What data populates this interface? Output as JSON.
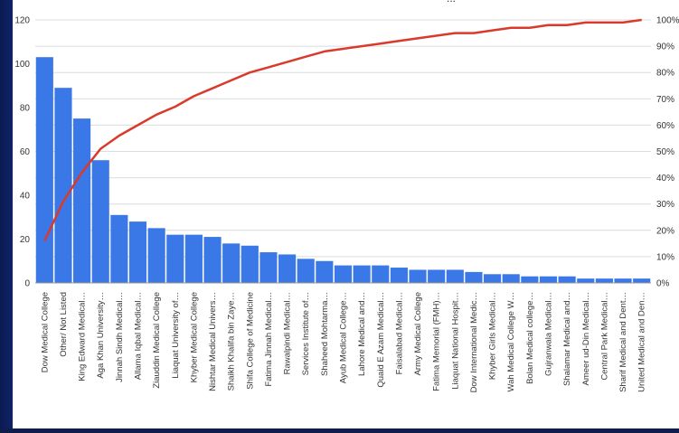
{
  "stub_text": "...",
  "chart_data": {
    "type": "bar",
    "title": "",
    "xlabel": "",
    "ylabel": "",
    "ylim": [
      0,
      120
    ],
    "y_ticks": [
      "0",
      "20",
      "40",
      "60",
      "80",
      "100",
      "120"
    ],
    "y2lim": [
      0,
      100
    ],
    "y2_ticks": [
      "0%",
      "10%",
      "20%",
      "30%",
      "40%",
      "50%",
      "60%",
      "70%",
      "80%",
      "90%",
      "100%"
    ],
    "grid": true,
    "legend": "none",
    "colors": {
      "bars": "#3b78e7",
      "line": "#d93a2b"
    },
    "categories": [
      "Dow Medical College",
      "Other/ Not Listed",
      "King Edward Medical…",
      "Aga Khan University…",
      "Jinnah Sindh Medical…",
      "Allama Iqbal Medical…",
      "Ziauddin Medical College",
      "Liaquat University of…",
      "Khyber Medical College",
      "Nishtar Medical Univers…",
      "Shaikh Khalifa bin Zaye…",
      "Shifa College of Medicine",
      "Fatima Jinnah Medical…",
      "Rawalpindi Medical…",
      "Services Institute of…",
      "Shaheed Mohtarma…",
      "Ayub Medical College…",
      "Lahore Medical and…",
      "Quaid E Azam Medical…",
      "Faisalabad Medical…",
      "Army Medical College",
      "Fatima Memorial (FMH)…",
      "Liaquat National Hospit…",
      "Dow International Medic…",
      "Khyber Girls Medical…",
      "Wah Medical College W…",
      "Bolan Medical college…",
      "Gujranwala Medical…",
      "Shalamar Medical and…",
      "Ameer ud-Din Medical…",
      "Central Park Medical…",
      "Sharif Medical and Dent…",
      "United Medical and Den…"
    ],
    "series": [
      {
        "type": "bar",
        "axis": "left",
        "values": [
          103,
          89,
          75,
          56,
          31,
          28,
          25,
          22,
          22,
          21,
          18,
          17,
          14,
          13,
          11,
          10,
          8,
          8,
          8,
          7,
          6,
          6,
          6,
          5,
          4,
          4,
          3,
          3,
          3,
          2,
          2,
          2,
          2
        ]
      },
      {
        "type": "line",
        "axis": "right",
        "values": [
          16,
          31,
          42,
          51,
          56,
          60,
          64,
          67,
          71,
          74,
          77,
          80,
          82,
          84,
          86,
          88,
          89,
          90,
          91,
          92,
          93,
          94,
          95,
          95,
          96,
          97,
          97,
          98,
          98,
          99,
          99,
          99,
          100
        ]
      }
    ]
  }
}
